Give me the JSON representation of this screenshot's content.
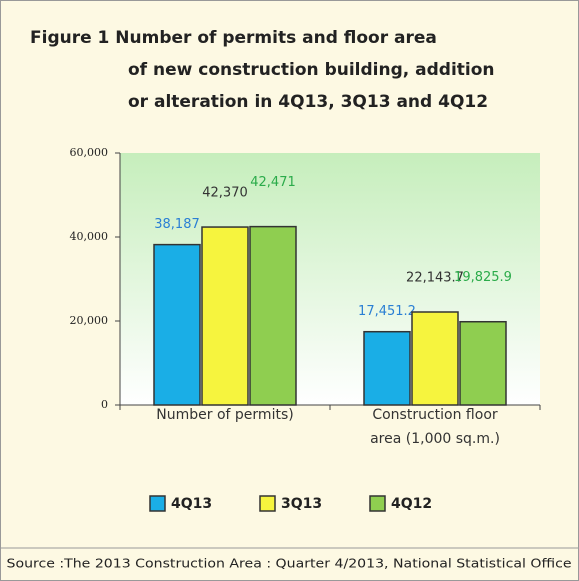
{
  "chart_data": {
    "type": "bar",
    "title": [
      "Figure 1  Number of permits and floor area",
      "of new construction building, addition",
      "or alteration in 4Q13, 3Q13 and 4Q12"
    ],
    "categories": [
      "Number of permits)",
      "Construction floor area (1,000 sq.m.)"
    ],
    "series": [
      {
        "name": "4Q13",
        "color": "#1aaee6",
        "label_color": "#2a7fd4",
        "values": [
          38187,
          17451.2
        ],
        "value_labels": [
          "38,187",
          "17,451.2"
        ]
      },
      {
        "name": "3Q13",
        "color": "#f6f43e",
        "label_color": "#333333",
        "values": [
          42370,
          22143.7
        ],
        "value_labels": [
          "42,370",
          "22,143.7"
        ]
      },
      {
        "name": "4Q12",
        "color": "#8fce50",
        "label_color": "#2bab4a",
        "values": [
          42471,
          19825.9
        ],
        "value_labels": [
          "42,471",
          "19,825.9"
        ]
      }
    ],
    "ylim": [
      0,
      60000
    ],
    "yticks": [
      {
        "value": 0,
        "label": "0"
      },
      {
        "value": 20000,
        "label": "20,000"
      },
      {
        "value": 40000,
        "label": "40,000"
      },
      {
        "value": 60000,
        "label": "60,000"
      }
    ],
    "legend": "bottom",
    "source": "Source :The 2013 Construction Area : Quarter 4/2013, National Statistical Office"
  }
}
